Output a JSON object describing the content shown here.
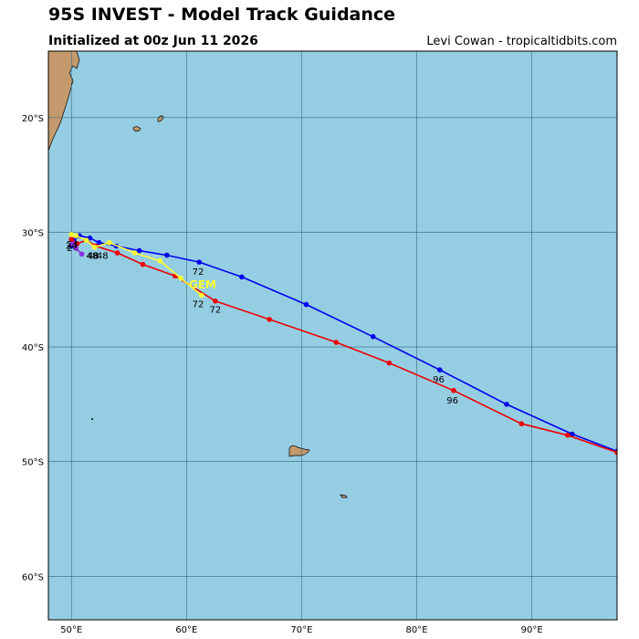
{
  "header": {
    "title": "95S INVEST - Model Track Guidance",
    "subtitle": "Initialized at 00z Jun 11 2026",
    "credit": "Levi Cowan - tropicaltidbits.com"
  },
  "colors": {
    "ocean": "#95cde3",
    "land": "#c49a6c",
    "grid": "#3b6a80",
    "track_blue": "#0000ee",
    "track_red": "#ee0000",
    "track_yellow": "#ffff33"
  },
  "map": {
    "lon_range": [
      48,
      97.4
    ],
    "lat_range": [
      -63.8,
      -14.2
    ],
    "lon_ticks": [
      {
        "value": 50,
        "label": "50°E"
      },
      {
        "value": 60,
        "label": "60°E"
      },
      {
        "value": 70,
        "label": "70°E"
      },
      {
        "value": 80,
        "label": "80°E"
      },
      {
        "value": 90,
        "label": "90°E"
      }
    ],
    "lat_ticks": [
      {
        "value": -20,
        "label": "20°S"
      },
      {
        "value": -30,
        "label": "30°S"
      },
      {
        "value": -40,
        "label": "40°S"
      },
      {
        "value": -50,
        "label": "50°S"
      },
      {
        "value": -60,
        "label": "60°S"
      }
    ]
  },
  "chart_data": {
    "type": "map-tracks",
    "tracks": [
      {
        "color": "blue",
        "points": [
          [
            50.0,
            -31.2
          ],
          [
            50.2,
            -30.7
          ],
          [
            50.7,
            -30.3
          ],
          [
            51.6,
            -30.5
          ],
          [
            52.4,
            -30.9
          ],
          [
            53.9,
            -31.2
          ],
          [
            55.9,
            -31.6
          ],
          [
            58.3,
            -32.0
          ],
          [
            61.1,
            -32.6
          ],
          [
            64.8,
            -33.9
          ],
          [
            70.4,
            -36.3
          ],
          [
            76.2,
            -39.1
          ],
          [
            82.0,
            -42.0
          ],
          [
            87.8,
            -45.0
          ],
          [
            93.5,
            -47.6
          ],
          [
            97.4,
            -49.1
          ]
        ],
        "labels": [
          {
            "text": "24",
            "lon": 50.1,
            "lat": -31.3
          },
          {
            "text": "48",
            "lon": 52.7,
            "lat": -32.0
          },
          {
            "text": "72",
            "lon": 61.0,
            "lat": -33.4
          },
          {
            "text": "96",
            "lon": 81.9,
            "lat": -42.8
          }
        ]
      },
      {
        "color": "red",
        "points": [
          [
            50.0,
            -30.6
          ],
          [
            50.5,
            -31.0
          ],
          [
            51.3,
            -30.7
          ],
          [
            52.1,
            -31.2
          ],
          [
            54.0,
            -31.8
          ],
          [
            56.2,
            -32.8
          ],
          [
            59.0,
            -33.8
          ],
          [
            62.5,
            -36.0
          ],
          [
            67.2,
            -37.6
          ],
          [
            73.0,
            -39.6
          ],
          [
            77.6,
            -41.4
          ],
          [
            83.2,
            -43.8
          ],
          [
            89.1,
            -46.7
          ],
          [
            93.1,
            -47.7
          ],
          [
            97.4,
            -49.2
          ]
        ],
        "labels": [
          {
            "text": "24",
            "lon": 50.1,
            "lat": -31.0
          },
          {
            "text": "48",
            "lon": 51.9,
            "lat": -32.0
          },
          {
            "text": "72",
            "lon": 62.5,
            "lat": -36.7
          },
          {
            "text": "96",
            "lon": 83.1,
            "lat": -44.6
          }
        ]
      },
      {
        "color": "purple",
        "points": [
          [
            50.1,
            -31.0
          ],
          [
            50.4,
            -31.4
          ],
          [
            50.9,
            -31.9
          ]
        ],
        "labels": []
      },
      {
        "color": "yellow",
        "name": "GEM",
        "points": [
          [
            50.0,
            -30.2
          ],
          [
            50.4,
            -30.3
          ],
          [
            51.3,
            -30.7
          ],
          [
            52.0,
            -31.3
          ],
          [
            53.3,
            -30.9
          ],
          [
            55.5,
            -31.8
          ],
          [
            57.7,
            -32.5
          ],
          [
            59.5,
            -34.0
          ],
          [
            61.3,
            -35.5
          ]
        ],
        "labels": [
          {
            "text": "24",
            "lon": 50.0,
            "lat": -31.1
          },
          {
            "text": "48",
            "lon": 51.8,
            "lat": -32.0
          },
          {
            "text": "72",
            "lon": 61.0,
            "lat": -36.2
          }
        ],
        "name_label": {
          "lon": 60.2,
          "lat": -34.6
        }
      }
    ]
  }
}
